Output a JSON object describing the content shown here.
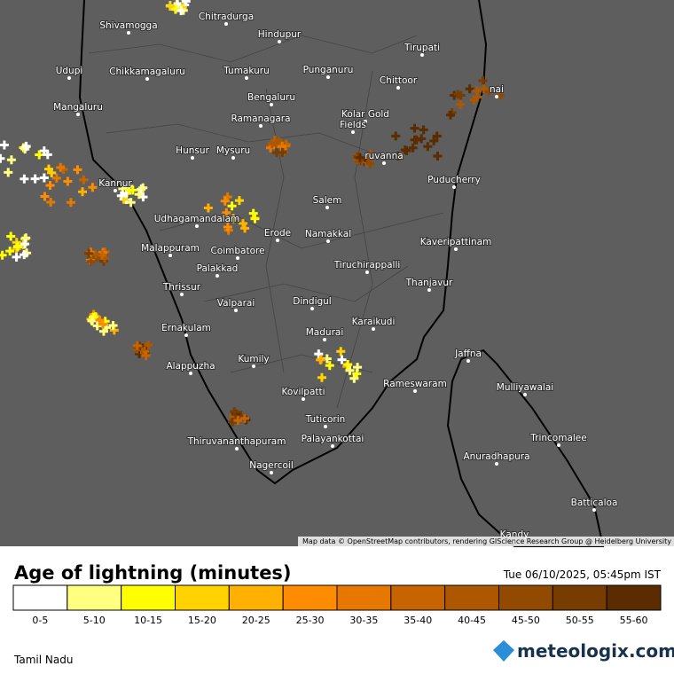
{
  "map": {
    "places": [
      "Shivamogga",
      "Chitradurga",
      "Hindupur",
      "Tirupati",
      "Udupi",
      "Chikkamagaluru",
      "Tumakuru",
      "Punganuru",
      "Chittoor",
      "nai",
      "Mangaluru",
      "Bengaluru",
      "Ramanagara",
      "Kolar Gold",
      "Fields",
      "Hunsur",
      "Mysuru",
      "ruvanna",
      "Kannur",
      "Puducherry",
      "Salem",
      "Udhagamandalam",
      "Erode",
      "Namakkal",
      "Kaveripattinam",
      "Malappuram",
      "Coimbatore",
      "Tiruchirappalli",
      "Palakkad",
      "Thanjavur",
      "Thrissur",
      "Valparai",
      "Dindigul",
      "Karaikudi",
      "Ernakulam",
      "Madurai",
      "Jaffna",
      "Kumily",
      "Alappuzha",
      "Rameswaram",
      "Mulliyawalai",
      "Kovilpatti",
      "Tuticorin",
      "Thiruvananthapuram",
      "Palayankottai",
      "Trincomalee",
      "Anuradhapura",
      "Nagercoil",
      "Batticaloa",
      "Kandy"
    ],
    "attribution": "Map data © OpenStreetMap contributors, rendering GIScience Research Group @ Heidelberg University"
  },
  "legend": {
    "title": "Age of lightning (minutes)",
    "timestamp": "Tue 06/10/2025, 05:45pm IST",
    "bins": [
      {
        "label": "0-5",
        "color": "#ffffff"
      },
      {
        "label": "5-10",
        "color": "#ffff80"
      },
      {
        "label": "10-15",
        "color": "#ffff00"
      },
      {
        "label": "15-20",
        "color": "#ffd200"
      },
      {
        "label": "20-25",
        "color": "#ffb000"
      },
      {
        "label": "25-30",
        "color": "#ff8c00"
      },
      {
        "label": "30-35",
        "color": "#e67800"
      },
      {
        "label": "35-40",
        "color": "#c86400"
      },
      {
        "label": "40-45",
        "color": "#ad5800"
      },
      {
        "label": "45-50",
        "color": "#924a00"
      },
      {
        "label": "50-55",
        "color": "#763c00"
      },
      {
        "label": "55-60",
        "color": "#5a2c00"
      }
    ]
  },
  "footer": {
    "region": "Tamil Nadu",
    "brand": "meteologix.com"
  }
}
